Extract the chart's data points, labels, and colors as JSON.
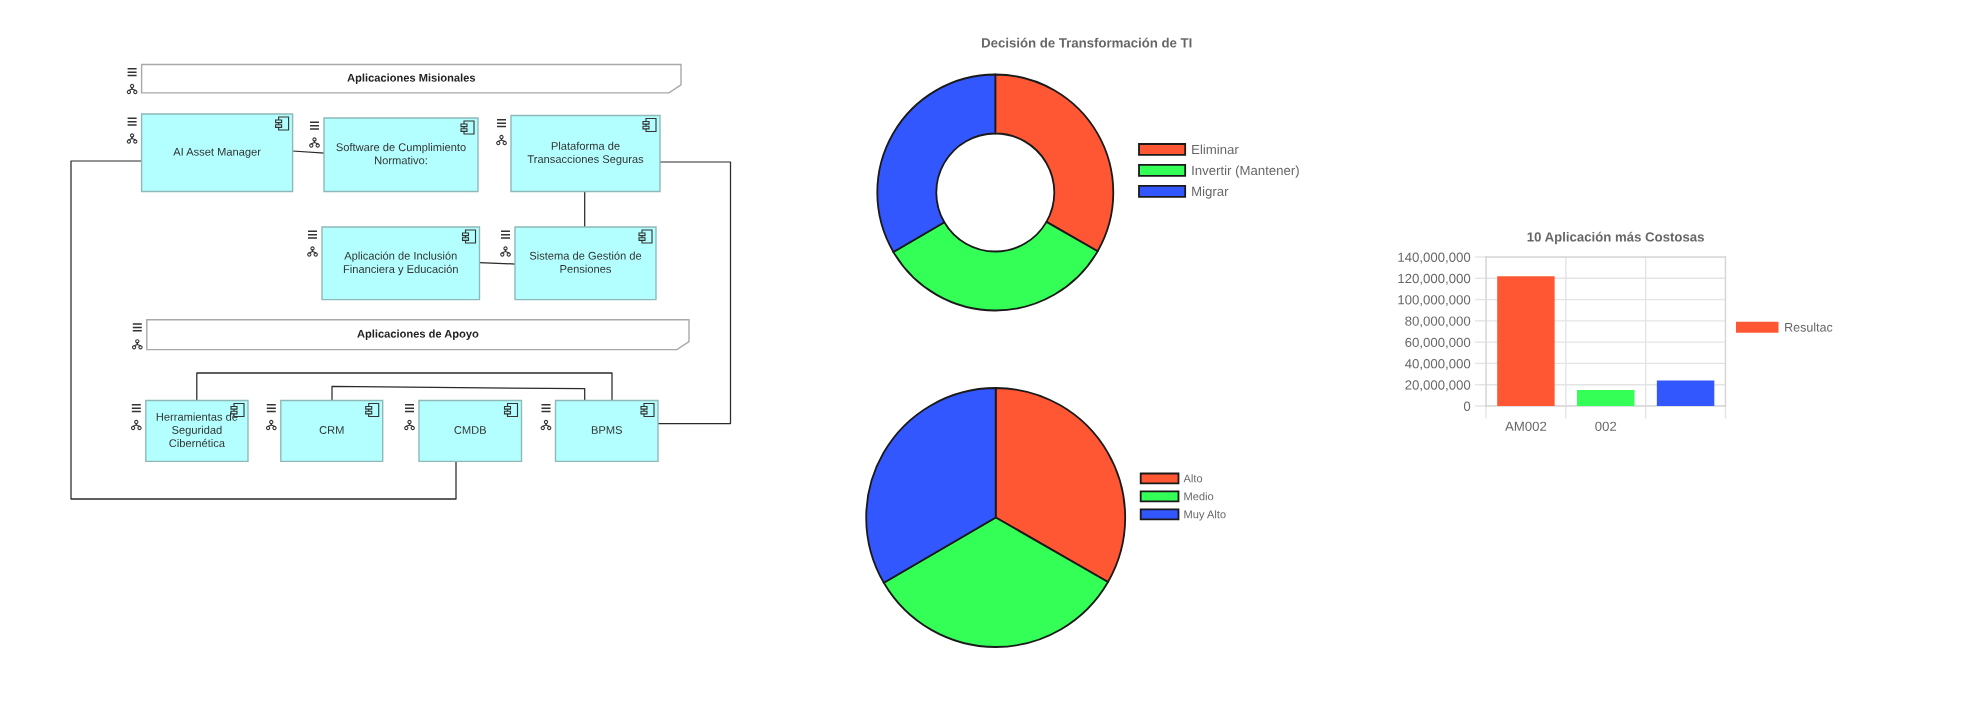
{
  "chart_data": [
    {
      "type": "other",
      "annotations": [
        "Aplicaciones Misionales",
        "AI Asset Manager",
        "Software de Cumplimiento Normativo:",
        "Plataforma de Transacciones Seguras",
        "Aplicación de Inclusión Financiera y Educación",
        "Sistema de Gestión de Pensiones",
        "Aplicaciones de Apoyo",
        "Herramientas de Seguridad Cibernética",
        "CRM",
        "CMDB",
        "BPMS"
      ]
    },
    {
      "type": "donut",
      "title": "Decisión de Transformación de TI",
      "categories": [
        "Eliminar",
        "Invertir (Mantener)",
        "Migrar"
      ],
      "values": [
        33.3,
        33.3,
        33.4
      ],
      "colors": [
        "#ff5733",
        "#33ff57",
        "#3357ff"
      ],
      "legend": "right"
    },
    {
      "type": "pie",
      "categories": [
        "Alto",
        "Medio",
        "Muy Alto"
      ],
      "values": [
        33.3,
        33.3,
        33.4
      ],
      "colors": [
        "#ff5733",
        "#33ff57",
        "#3357ff"
      ],
      "legend": "right"
    },
    {
      "type": "bar",
      "title": "10 Aplicación más Costosas",
      "categories": [
        "AM002",
        "002",
        null
      ],
      "series": [
        {
          "name": "Resultac",
          "color": "#ff5733",
          "colors": [
            "#ff5733",
            "#33ff57",
            "#3357ff"
          ],
          "values": [
            122000000,
            15000000,
            24000000
          ]
        }
      ],
      "ylim": [
        0,
        140000000
      ],
      "yticks": [
        0,
        {
          "value": 20000000,
          "label": "20,000,000"
        },
        {
          "value": 40000000,
          "label": "40,000,000"
        },
        {
          "value": 60000000,
          "label": "60,000,000"
        },
        {
          "value": 80000000,
          "label": "80,000,000"
        },
        {
          "value": 100000000,
          "label": "100,000,000"
        },
        {
          "value": 120000000,
          "label": "120,000,000"
        },
        {
          "value": 140000000,
          "label": "140,000,000"
        }
      ],
      "grid": true,
      "legend": "right"
    }
  ]
}
